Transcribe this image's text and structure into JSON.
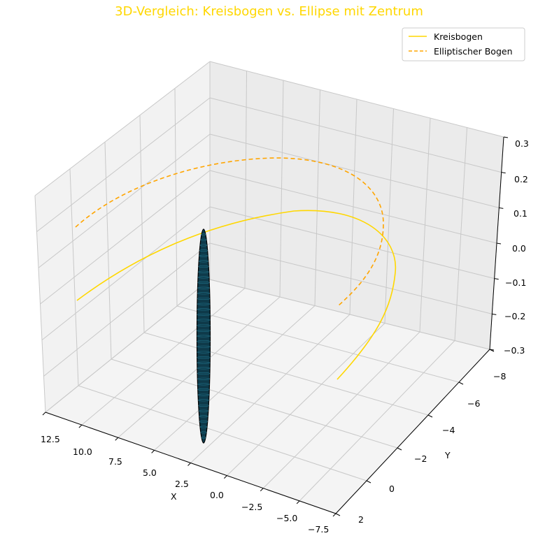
{
  "chart_data": {
    "type": "line",
    "title": "3D-Vergleich: Kreisbogen vs. Ellipse mit Zentrum",
    "title_color": "#FFD700",
    "xlabel": "X",
    "ylabel": "Y",
    "zlabel": "",
    "xlim": [
      -7.5,
      12.5
    ],
    "ylim": [
      -8,
      2
    ],
    "zlim": [
      -0.3,
      0.3
    ],
    "x_ticks": [
      "12.5",
      "10.0",
      "7.5",
      "5.0",
      "2.5",
      "0.0",
      "−2.5",
      "−5.0",
      "−7.5"
    ],
    "y_ticks": [
      "−8",
      "−6",
      "−4",
      "−2",
      "0",
      "2"
    ],
    "z_ticks": [
      "0.3",
      "0.2",
      "0.1",
      "0.0",
      "−0.1",
      "−0.2",
      "−0.3"
    ],
    "grid": true,
    "legend_position": "top-right",
    "series": [
      {
        "name": "Kreisbogen",
        "style": "solid",
        "color": "#FFD700",
        "x": [
          -5.0,
          -3.5,
          -1.6,
          0.4,
          2.5,
          4.6,
          6.6,
          8.5,
          10.0,
          11.0,
          11.5
        ],
        "y": [
          1.3,
          -1.0,
          -3.3,
          -5.0,
          -6.3,
          -6.9,
          -6.9,
          -6.2,
          -5.0,
          -3.5,
          -2.0
        ],
        "z": [
          0,
          0,
          0,
          0,
          0,
          0,
          0,
          0,
          0,
          0,
          0
        ]
      },
      {
        "name": "Elliptischer Bogen",
        "style": "dashed",
        "color": "#FFA500",
        "x": [
          -5.5,
          -4.0,
          -2.0,
          0.5,
          3.0,
          5.5,
          8.0,
          10.0,
          11.5,
          12.3
        ],
        "y": [
          1.2,
          -1.5,
          -4.0,
          -6.0,
          -7.3,
          -8.0,
          -7.8,
          -7.0,
          -5.5,
          -3.5
        ],
        "z": [
          0.1,
          0.1,
          0.1,
          0.1,
          0.1,
          0.1,
          0.1,
          0.1,
          0.1,
          0.1
        ]
      }
    ],
    "center_object": {
      "type": "ellipsoid-surface",
      "name": "Zentrum",
      "fill_color": "#0E3A4A",
      "edge_color": "#000000",
      "x": 0.0,
      "y": 0.0,
      "z_range": [
        -0.3,
        0.3
      ]
    }
  }
}
